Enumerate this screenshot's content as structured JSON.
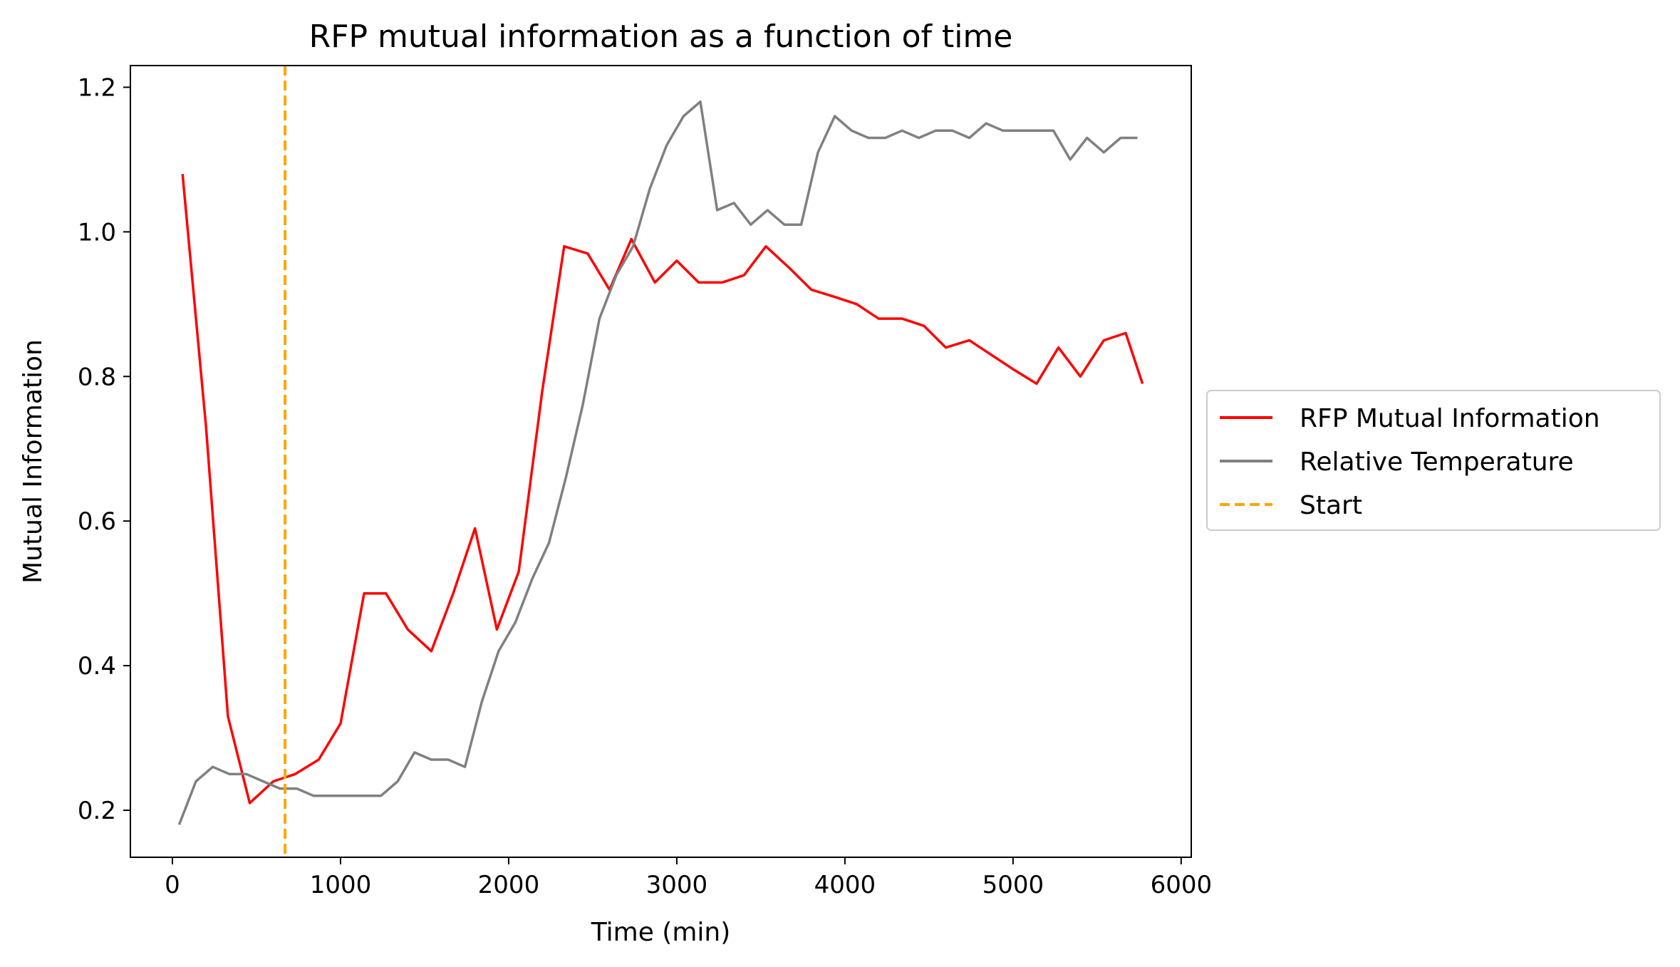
{
  "chart_data": {
    "type": "line",
    "title": "RFP mutual information as a function of time",
    "xlabel": "Time (min)",
    "ylabel": "Mutual Information",
    "xlim": [
      -250,
      6060
    ],
    "ylim": [
      0.135,
      1.23
    ],
    "xticks": [
      0,
      1000,
      2000,
      3000,
      4000,
      5000,
      6000
    ],
    "xtick_labels": [
      "0",
      "1000",
      "2000",
      "3000",
      "4000",
      "5000",
      "6000"
    ],
    "yticks": [
      0.2,
      0.4,
      0.6,
      0.8,
      1.0,
      1.2
    ],
    "ytick_labels": [
      "0.2",
      "0.4",
      "0.6",
      "0.8",
      "1.0",
      "1.2"
    ],
    "grid": false,
    "legend_position": "outside-right",
    "series": [
      {
        "name": "RFP Mutual Information",
        "color": "#ff0000",
        "style": "solid",
        "x": [
          60,
          200,
          330,
          460,
          600,
          730,
          870,
          1000,
          1140,
          1270,
          1400,
          1540,
          1670,
          1800,
          1930,
          2060,
          2200,
          2330,
          2470,
          2600,
          2730,
          2870,
          3000,
          3130,
          3270,
          3400,
          3530,
          3670,
          3800,
          3940,
          4070,
          4200,
          4340,
          4470,
          4600,
          4740,
          4870,
          5000,
          5140,
          5270,
          5400,
          5540,
          5670,
          5770
        ],
        "y": [
          1.08,
          0.73,
          0.33,
          0.21,
          0.24,
          0.25,
          0.27,
          0.32,
          0.5,
          0.5,
          0.45,
          0.42,
          0.5,
          0.59,
          0.45,
          0.53,
          0.78,
          0.98,
          0.97,
          0.92,
          0.99,
          0.93,
          0.96,
          0.93,
          0.93,
          0.94,
          0.98,
          0.95,
          0.92,
          0.91,
          0.9,
          0.88,
          0.88,
          0.87,
          0.84,
          0.85,
          0.83,
          0.81,
          0.79,
          0.84,
          0.8,
          0.85,
          0.86,
          0.79
        ]
      },
      {
        "name": "Relative Temperature",
        "color": "#808080",
        "style": "solid",
        "x": [
          40,
          140,
          240,
          340,
          440,
          540,
          640,
          740,
          840,
          940,
          1040,
          1140,
          1240,
          1340,
          1440,
          1540,
          1640,
          1740,
          1840,
          1940,
          2040,
          2140,
          2240,
          2340,
          2440,
          2540,
          2640,
          2740,
          2840,
          2940,
          3040,
          3140,
          3240,
          3340,
          3440,
          3540,
          3640,
          3740,
          3840,
          3940,
          4040,
          4140,
          4240,
          4340,
          4440,
          4540,
          4640,
          4740,
          4840,
          4940,
          5040,
          5140,
          5240,
          5340,
          5440,
          5540,
          5640,
          5740
        ],
        "y": [
          0.18,
          0.24,
          0.26,
          0.25,
          0.25,
          0.24,
          0.23,
          0.23,
          0.22,
          0.22,
          0.22,
          0.22,
          0.22,
          0.24,
          0.28,
          0.27,
          0.27,
          0.26,
          0.35,
          0.42,
          0.46,
          0.52,
          0.57,
          0.66,
          0.76,
          0.88,
          0.94,
          0.98,
          1.06,
          1.12,
          1.16,
          1.18,
          1.03,
          1.04,
          1.01,
          1.03,
          1.01,
          1.01,
          1.11,
          1.16,
          1.14,
          1.13,
          1.13,
          1.14,
          1.13,
          1.14,
          1.14,
          1.13,
          1.15,
          1.14,
          1.14,
          1.14,
          1.14,
          1.1,
          1.13,
          1.11,
          1.13,
          1.13
        ]
      },
      {
        "name": "Start",
        "color": "#ffa500",
        "style": "dashed",
        "vline_x": 670
      }
    ]
  }
}
